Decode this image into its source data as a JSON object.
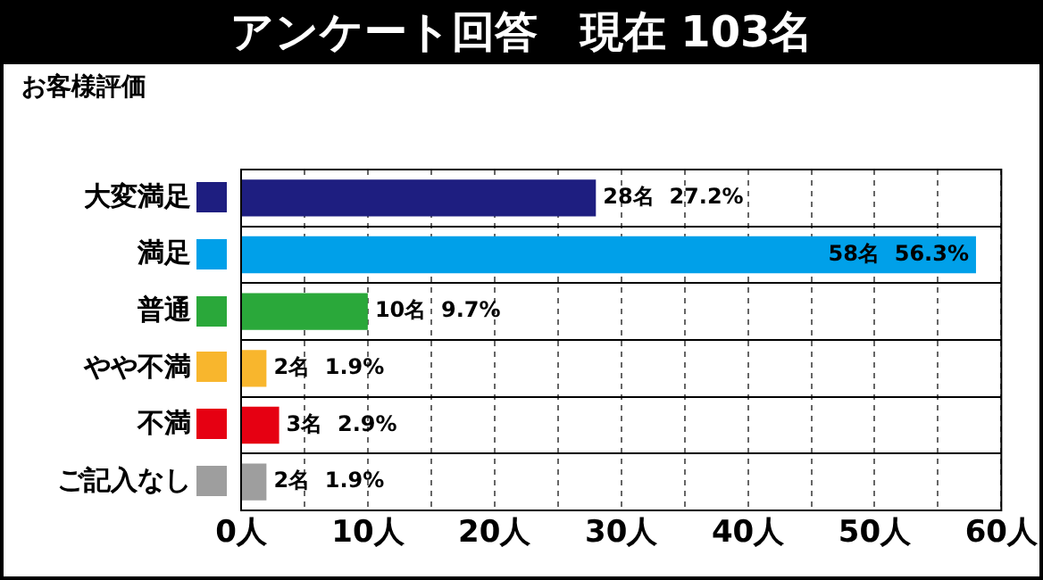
{
  "chart_data": {
    "type": "bar",
    "orientation": "horizontal",
    "title": "アンケート回答　現在 103名",
    "subtitle": "お客様評価",
    "categories": [
      "大変満足",
      "満足",
      "普通",
      "やや不満",
      "不満",
      "ご記入なし"
    ],
    "values": [
      28,
      58,
      10,
      2,
      3,
      2
    ],
    "colors": [
      "#1e1e80",
      "#00a0e9",
      "#2aa83a",
      "#f8b62d",
      "#e60012",
      "#9e9e9e"
    ],
    "value_labels": [
      "28名  27.2%",
      "58名  56.3%",
      "10名  9.7%",
      "2名  1.9%",
      "3名  2.9%",
      "2名  1.9%"
    ],
    "xlim": [
      0,
      60
    ],
    "xticks": [
      {
        "value": 0,
        "label": "0人"
      },
      {
        "value": 5,
        "label": null
      },
      {
        "value": 10,
        "label": "10人"
      },
      {
        "value": 15,
        "label": null
      },
      {
        "value": 20,
        "label": "20人"
      },
      {
        "value": 25,
        "label": null
      },
      {
        "value": 30,
        "label": "30人"
      },
      {
        "value": 35,
        "label": null
      },
      {
        "value": 40,
        "label": "40人"
      },
      {
        "value": 45,
        "label": null
      },
      {
        "value": 50,
        "label": "50人"
      },
      {
        "value": 55,
        "label": null
      },
      {
        "value": 60,
        "label": "60人"
      }
    ],
    "grid": true,
    "legend": false
  }
}
